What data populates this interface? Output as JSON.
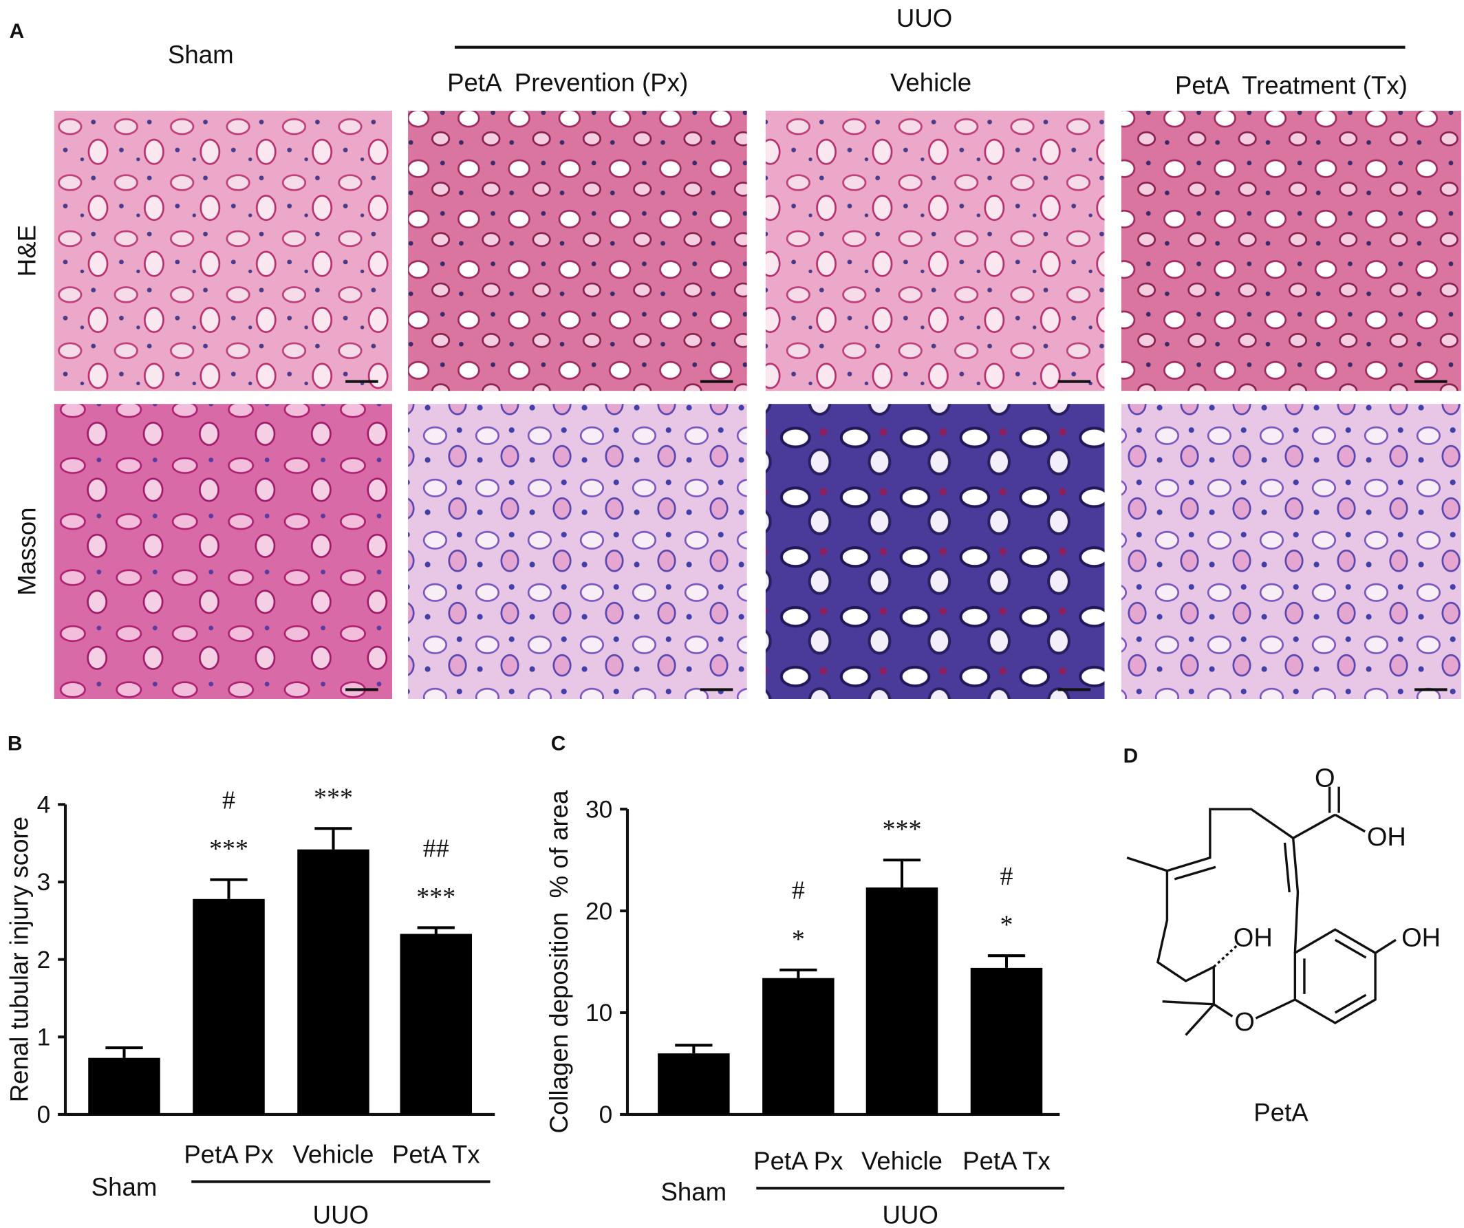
{
  "panel_labels": [
    "A",
    "B",
    "C",
    "D"
  ],
  "figure_a": {
    "group_label": "UUO",
    "columns": [
      "Sham",
      "PetA  Prevention (Px)",
      "Vehicle",
      "PetA  Treatment (Tx)"
    ],
    "rows": [
      "H&E",
      "Masson"
    ]
  },
  "chart_data": [
    {
      "type": "bar",
      "ylabel": "Renal tubular injury score",
      "categories": [
        "Sham",
        "PetA Px",
        "Vehicle",
        "PetA Tx"
      ],
      "values": [
        0.73,
        2.78,
        3.42,
        2.33
      ],
      "errors": [
        0.13,
        0.25,
        0.27,
        0.08
      ],
      "stars": [
        null,
        "***",
        "***",
        "***"
      ],
      "hashes": [
        null,
        "#",
        null,
        "##"
      ],
      "group_label": "UUO",
      "color": "#000000",
      "ylim": [
        0,
        4
      ],
      "yticks": [
        0,
        1,
        2,
        3,
        4
      ]
    },
    {
      "type": "bar",
      "ylabel": "Collagen deposition  % of area",
      "categories": [
        "Sham",
        "PetA Px",
        "Vehicle",
        "PetA Tx"
      ],
      "values": [
        6.0,
        13.4,
        22.3,
        14.4
      ],
      "errors": [
        0.8,
        0.8,
        2.7,
        1.2
      ],
      "stars": [
        null,
        "*",
        "***",
        "*"
      ],
      "hashes": [
        null,
        "#",
        null,
        "#"
      ],
      "group_label": "UUO",
      "color": "#000000",
      "ylim": [
        0,
        30
      ],
      "yticks": [
        0,
        10,
        20,
        30
      ]
    }
  ],
  "structure": {
    "name": "PetA",
    "atoms": [
      "O",
      "OH",
      "OH",
      "O",
      "OH"
    ]
  }
}
